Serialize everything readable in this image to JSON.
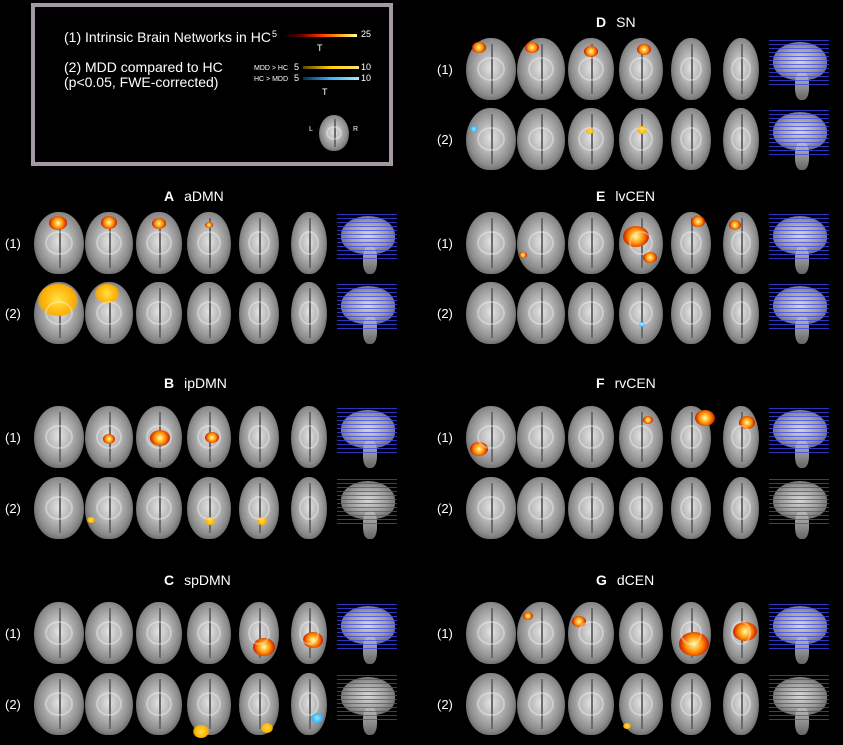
{
  "legend": {
    "line1": "(1) Intrinsic Brain Networks in HC",
    "line2": "(2) MDD compared to HC",
    "line3": "(p<0.05, FWE-corrected)",
    "scale1": {
      "min": "5",
      "max": "25",
      "label": "T"
    },
    "scale_mdd_gt_hc": {
      "label": "MDD > HC",
      "min": "5",
      "max": "10"
    },
    "scale_hc_gt_mdd": {
      "label": "HC > MDD",
      "min": "5",
      "max": "10"
    },
    "scale2_label": "T",
    "orientation_left": "L",
    "orientation_right": "R",
    "colors": {
      "hot_low": "#6b0000",
      "hot_mid": "#ff4a00",
      "hot_high": "#ffff9a",
      "mdd_gt_hc": "#ffd200",
      "hc_gt_mdd": "#33b5ff",
      "frame": "#a49aa4"
    }
  },
  "row_labels": {
    "row1": "(1)",
    "row2": "(2)"
  },
  "panels": {
    "A": {
      "letter": "A",
      "name": "aDMN"
    },
    "B": {
      "letter": "B",
      "name": "ipDMN"
    },
    "C": {
      "letter": "C",
      "name": "spDMN"
    },
    "D": {
      "letter": "D",
      "name": "SN"
    },
    "E": {
      "letter": "E",
      "name": "lvCEN"
    },
    "F": {
      "letter": "F",
      "name": "rvCEN"
    },
    "G": {
      "letter": "G",
      "name": "dCEN"
    }
  }
}
